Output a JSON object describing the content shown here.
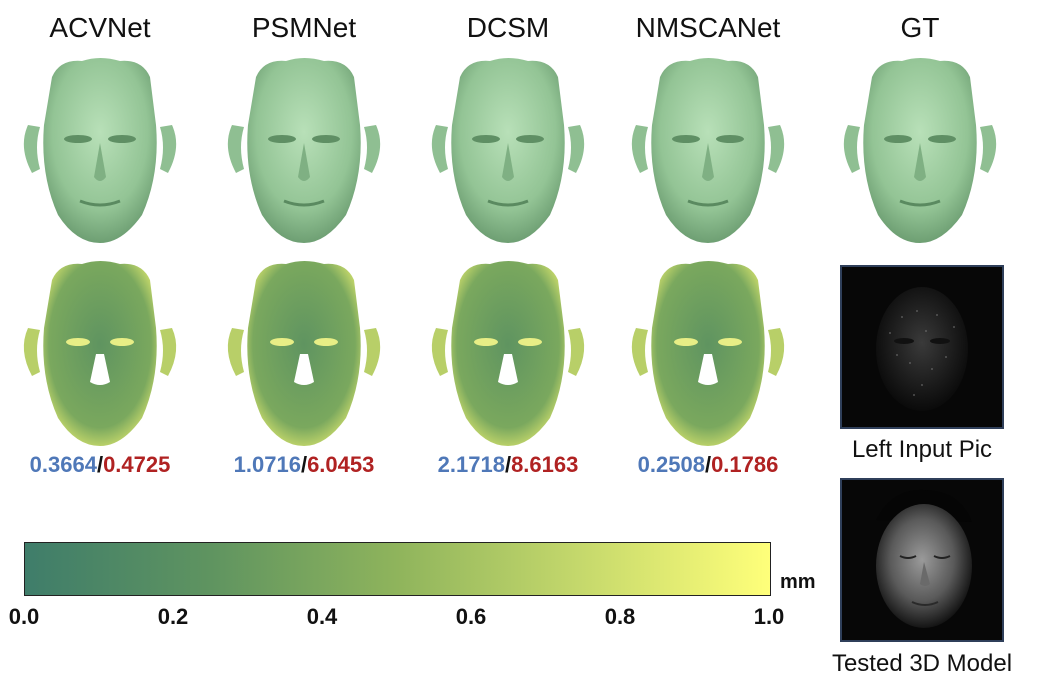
{
  "columns": [
    {
      "method": "ACVNet",
      "err_a": "0.3664",
      "err_b": "0.4725"
    },
    {
      "method": "PSMNet",
      "err_a": "1.0716",
      "err_b": "6.0453"
    },
    {
      "method": "DCSM",
      "err_a": "2.1718",
      "err_b": "8.6163"
    },
    {
      "method": "NMSCANet",
      "err_a": "0.2508",
      "err_b": "0.1786"
    }
  ],
  "gt_label": "GT",
  "separator": "/",
  "left_input_caption": "Left Input Pic",
  "tested_model_caption": "Tested 3D Model",
  "colorbar": {
    "ticks": [
      "0.0",
      "0.2",
      "0.4",
      "0.6",
      "0.8",
      "1.0"
    ],
    "unit": "mm",
    "color_min": "#3f7d6a",
    "color_max": "#ffff7a"
  },
  "colors": {
    "mesh_green": "#9ccc9e",
    "metric_blue": "#4f78b8",
    "metric_red": "#b02222"
  }
}
